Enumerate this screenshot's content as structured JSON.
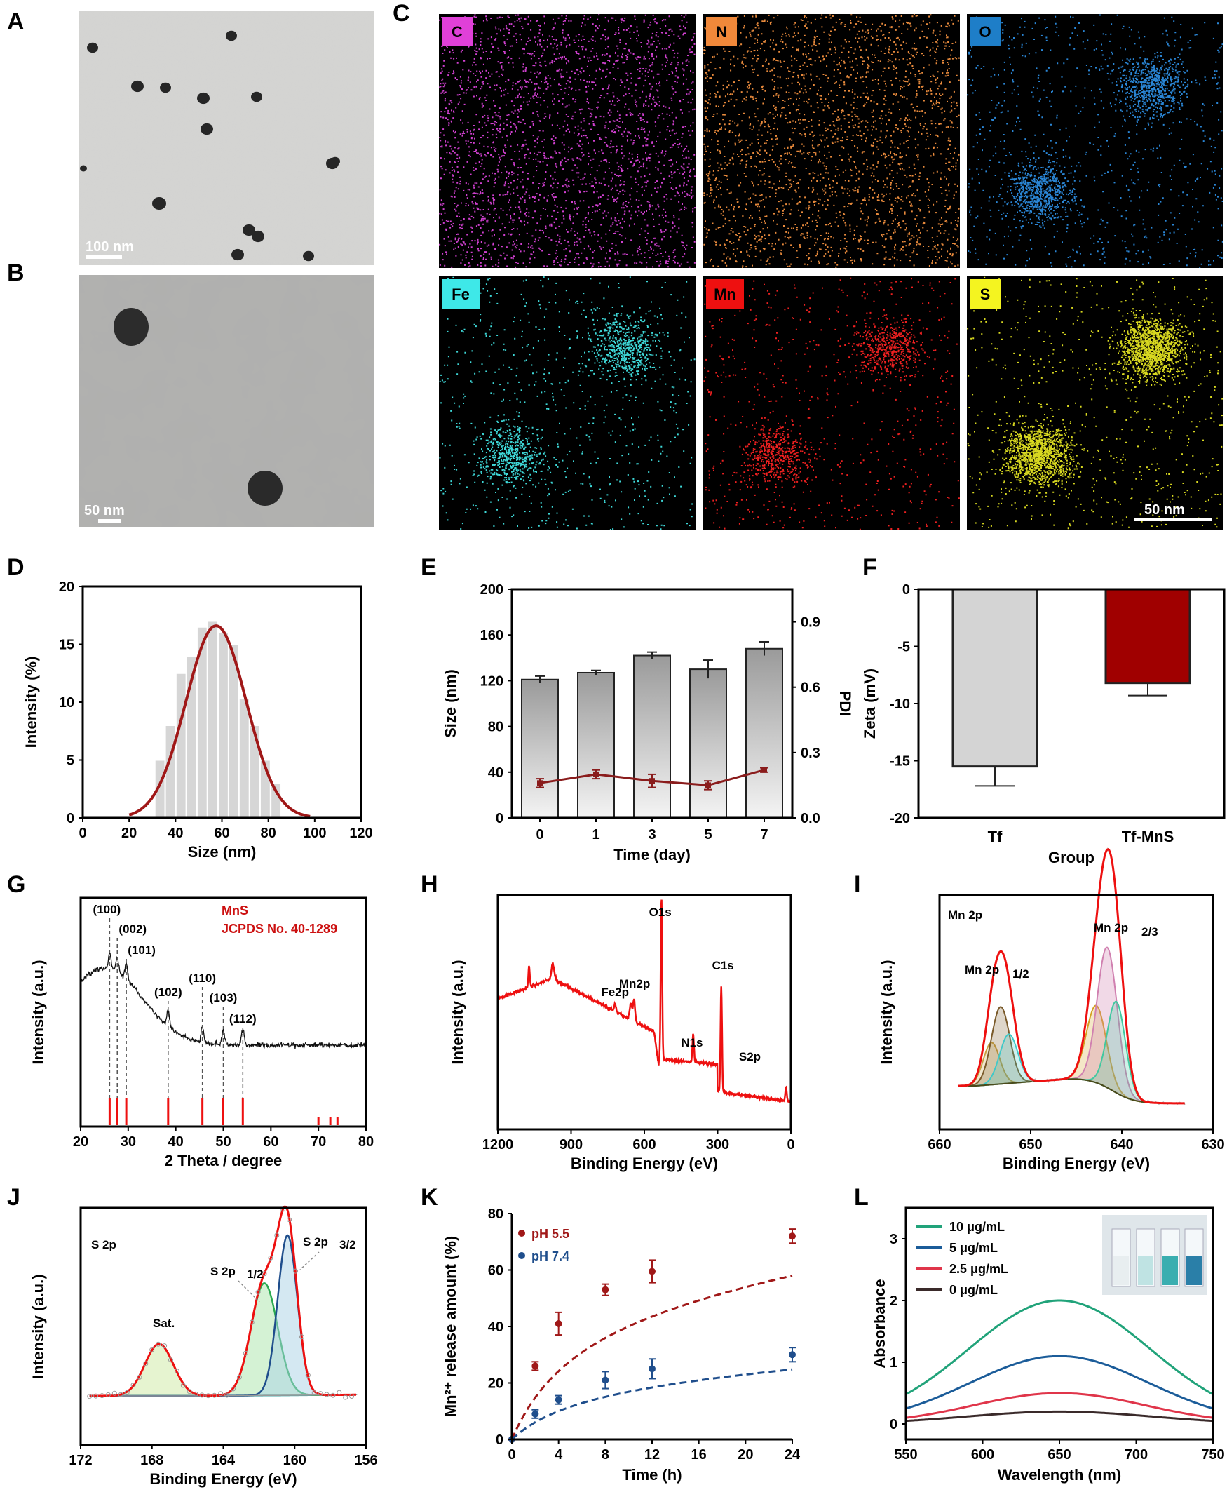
{
  "panels": {
    "a": {
      "label": "A",
      "scale_bar": "100 nm"
    },
    "b": {
      "label": "B",
      "scale_bar": "50 nm"
    },
    "c": {
      "label": "C",
      "elements": [
        {
          "symbol": "C",
          "color": "#d040d0",
          "label_bg": "#e040d8"
        },
        {
          "symbol": "N",
          "color": "#e88a3c",
          "label_bg": "#f0883a"
        },
        {
          "symbol": "O",
          "color": "#2a86d6",
          "label_bg": "#1e7ec8"
        },
        {
          "symbol": "Fe",
          "color": "#3ed8d8",
          "label_bg": "#3ee8e8"
        },
        {
          "symbol": "Mn",
          "color": "#ee2020",
          "label_bg": "#ee1010"
        },
        {
          "symbol": "S",
          "color": "#d8d820",
          "label_bg": "#f4f420"
        }
      ],
      "scale_bar": "50 nm"
    },
    "d": {
      "label": "D"
    },
    "e": {
      "label": "E"
    },
    "f": {
      "label": "F"
    },
    "g": {
      "label": "G"
    },
    "h": {
      "label": "H"
    },
    "i": {
      "label": "I"
    },
    "j": {
      "label": "J"
    },
    "k": {
      "label": "K"
    },
    "l": {
      "label": "L"
    }
  },
  "chart_data": [
    {
      "id": "D",
      "type": "bar",
      "xlabel": "Size (nm)",
      "ylabel": "Intensity (%)",
      "xlim": [
        0,
        120
      ],
      "ylim": [
        0,
        20
      ],
      "xticks": [
        "0",
        "20",
        "40",
        "60",
        "80",
        "100",
        "120"
      ],
      "yticks": [
        "0",
        "5",
        "10",
        "15",
        "20"
      ],
      "bin_width": 4.5,
      "bins": [
        {
          "x": 33.3,
          "y": 5.0
        },
        {
          "x": 37.8,
          "y": 8.0
        },
        {
          "x": 42.4,
          "y": 12.5
        },
        {
          "x": 46.9,
          "y": 14.0
        },
        {
          "x": 51.5,
          "y": 16.5
        },
        {
          "x": 56.0,
          "y": 17.0
        },
        {
          "x": 60.6,
          "y": 16.0
        },
        {
          "x": 65.1,
          "y": 15.0
        },
        {
          "x": 69.6,
          "y": 10.3
        },
        {
          "x": 74.2,
          "y": 8.0
        },
        {
          "x": 78.7,
          "y": 5.0
        },
        {
          "x": 83.3,
          "y": 3.0
        }
      ],
      "fit": {
        "type": "gaussian",
        "color": "#a01818",
        "amplitude": 16.6,
        "center": 57.5,
        "sigma": 13.0,
        "x_range": [
          20,
          98
        ]
      }
    },
    {
      "id": "E",
      "type": "bar",
      "xlabel": "Time (day)",
      "ylabel": "Size (nm)",
      "y2label": "PDI",
      "categories": [
        "0",
        "1",
        "3",
        "5",
        "7"
      ],
      "ylim": [
        0,
        200
      ],
      "y2lim": [
        0,
        1.05
      ],
      "yticks": [
        "0",
        "40",
        "80",
        "120",
        "160",
        "200"
      ],
      "y2ticks": [
        "0.0",
        "0.3",
        "0.6",
        "0.9"
      ],
      "series": [
        {
          "kind": "bar",
          "values": [
            121,
            127,
            142,
            130,
            148
          ],
          "errors": [
            3,
            2,
            3,
            8,
            6
          ]
        },
        {
          "kind": "line",
          "color": "#8a1c1c",
          "values": [
            0.16,
            0.2,
            0.17,
            0.15,
            0.22
          ],
          "errors": [
            0.02,
            0.02,
            0.03,
            0.02,
            0.01
          ]
        }
      ]
    },
    {
      "id": "F",
      "type": "bar",
      "xlabel": "Group",
      "ylabel": "Zeta (mV)",
      "categories": [
        "Tf",
        "Tf-MnS"
      ],
      "ylim": [
        -20,
        0
      ],
      "yticks": [
        "0",
        "-5",
        "-10",
        "-15",
        "-20"
      ],
      "series": [
        {
          "values": [
            -15.5,
            -8.2
          ],
          "errors": [
            1.7,
            1.1
          ],
          "colors": [
            "#d4d4d4",
            "#a00000"
          ]
        }
      ]
    },
    {
      "id": "G",
      "type": "line",
      "xlabel": "2 Theta / degree",
      "ylabel": "Intensity (a.u.)",
      "xlim": [
        20,
        80
      ],
      "xticks": [
        "20",
        "30",
        "40",
        "50",
        "60",
        "70",
        "80"
      ],
      "legend": [
        "MnS",
        "JCPDS No. 40-1289"
      ],
      "peaks": [
        {
          "label": "(100)",
          "x": 26.1
        },
        {
          "label": "(002)",
          "x": 27.7
        },
        {
          "label": "(101)",
          "x": 29.6
        },
        {
          "label": "(102)",
          "x": 38.4
        },
        {
          "label": "(110)",
          "x": 45.6
        },
        {
          "label": "(103)",
          "x": 50.0
        },
        {
          "label": "(112)",
          "x": 54.1
        }
      ],
      "reference_lines": [
        26.1,
        27.7,
        29.6,
        38.4,
        45.6,
        50.0,
        54.1,
        70.0,
        72.5,
        74.0
      ]
    },
    {
      "id": "H",
      "type": "line",
      "xlabel": "Binding Energy (eV)",
      "ylabel": "Intensity (a.u.)",
      "xlim": [
        1200,
        0
      ],
      "xticks": [
        "1200",
        "900",
        "600",
        "300",
        "0"
      ],
      "annotations": [
        "Fe2p",
        "Mn2p",
        "O1s",
        "N1s",
        "C1s",
        "S2p"
      ]
    },
    {
      "id": "I",
      "type": "line",
      "xlabel": "Binding Energy (eV)",
      "ylabel": "Intensity (a.u.)",
      "xlim": [
        660,
        630
      ],
      "xticks": [
        "660",
        "650",
        "640",
        "630"
      ],
      "title": "Mn 2p",
      "annotations": [
        "Mn 2p",
        "1/2",
        "Mn 2p",
        "2/3"
      ]
    },
    {
      "id": "J",
      "type": "line",
      "xlabel": "Binding Energy (eV)",
      "ylabel": "Intensity (a.u.)",
      "xlim": [
        172,
        156
      ],
      "xticks": [
        "172",
        "168",
        "164",
        "160",
        "156"
      ],
      "title": "S 2p",
      "annotations": [
        "Sat.",
        "S 2p",
        "1/2",
        "S 2p",
        "3/2"
      ]
    },
    {
      "id": "K",
      "type": "line",
      "xlabel": "Time (h)",
      "ylabel": "Mn²⁺ release amount (%)",
      "xlim": [
        0,
        24
      ],
      "ylim": [
        0,
        80
      ],
      "xticks": [
        "0",
        "4",
        "8",
        "12",
        "16",
        "20",
        "24"
      ],
      "yticks": [
        "0",
        "20",
        "40",
        "60",
        "80"
      ],
      "x": [
        0,
        2,
        4,
        8,
        12,
        24
      ],
      "series": [
        {
          "name": "pH 5.5",
          "color": "#a01818",
          "values": [
            0,
            26,
            41,
            53,
            59.5,
            72
          ],
          "errors": [
            0,
            1.5,
            4,
            2,
            4,
            2.5
          ]
        },
        {
          "name": "pH 7.4",
          "color": "#1f4e8c",
          "values": [
            0,
            9,
            14,
            21,
            25,
            30
          ],
          "errors": [
            0,
            1.5,
            1.5,
            3,
            3.5,
            2.5
          ]
        }
      ]
    },
    {
      "id": "L",
      "type": "line",
      "xlabel": "Wavelength (nm)",
      "ylabel": "Absorbance",
      "xlim": [
        550,
        750
      ],
      "ylim": [
        -0.25,
        3.5
      ],
      "xticks": [
        "550",
        "600",
        "650",
        "700",
        "750"
      ],
      "yticks": [
        "0",
        "1",
        "2",
        "3"
      ],
      "series": [
        {
          "name": "10 μg/mL",
          "color": "#21a37a",
          "peak": 2.0,
          "edge": 0.48
        },
        {
          "name": "5 μg/mL",
          "color": "#1b5c99",
          "peak": 1.1,
          "edge": 0.25
        },
        {
          "name": "2.5 μg/mL",
          "color": "#e0354a",
          "peak": 0.5,
          "edge": 0.1
        },
        {
          "name": "0 μg/mL",
          "color": "#3a2a2a",
          "peak": 0.2,
          "edge": 0.05
        }
      ]
    }
  ]
}
